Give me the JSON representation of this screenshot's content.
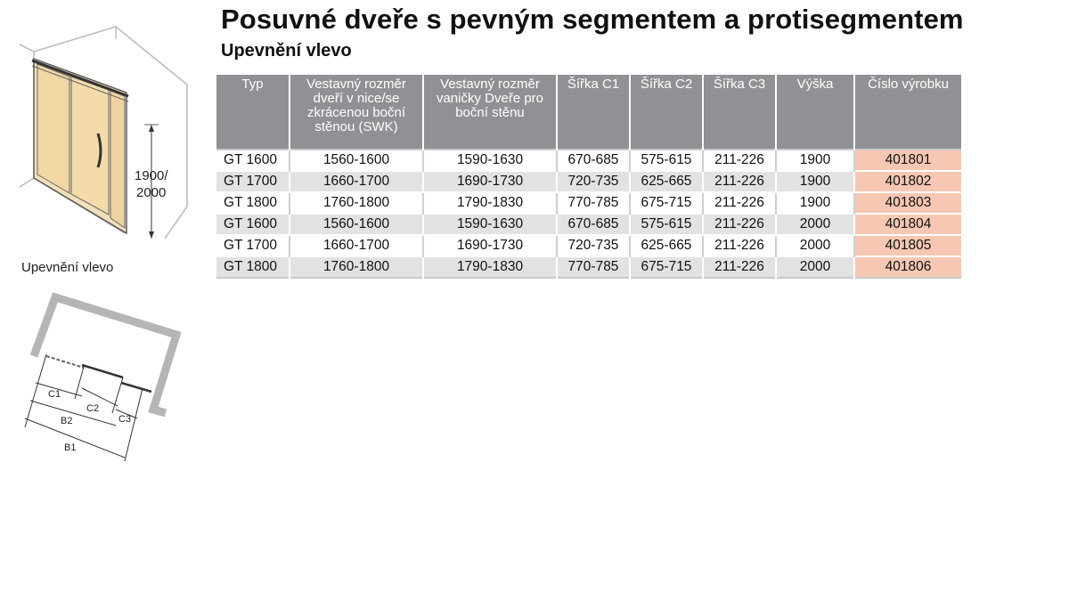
{
  "title": "Posuvné dveře s pevným segmentem a protisegmentem",
  "subtitle": "Upevnění vlevo",
  "figure": {
    "height_label_line1": "1900/",
    "height_label_line2": "2000",
    "caption": "Upevnění vlevo",
    "dim_c1": "C1",
    "dim_c2": "C2",
    "dim_c3": "C3",
    "dim_b1": "B1",
    "dim_b2": "B2"
  },
  "table": {
    "headers": [
      "Typ",
      "Vestavný rozměr dveří v nice/se zkrácenou boční stěnou (SWK)",
      "Vestavný rozměr vaničky Dveře pro boční stěnu",
      "Šířka C1",
      "Šířka C2",
      "Šířka C3",
      "Výška",
      "Číslo výrobku"
    ],
    "rows": [
      [
        "GT 1600",
        "1560-1600",
        "1590-1630",
        "670-685",
        "575-615",
        "211-226",
        "1900",
        "401801"
      ],
      [
        "GT 1700",
        "1660-1700",
        "1690-1730",
        "720-735",
        "625-665",
        "211-226",
        "1900",
        "401802"
      ],
      [
        "GT 1800",
        "1760-1800",
        "1790-1830",
        "770-785",
        "675-715",
        "211-226",
        "1900",
        "401803"
      ],
      [
        "GT 1600",
        "1560-1600",
        "1590-1630",
        "670-685",
        "575-615",
        "211-226",
        "2000",
        "401804"
      ],
      [
        "GT 1700",
        "1660-1700",
        "1690-1730",
        "720-735",
        "625-665",
        "211-226",
        "2000",
        "401805"
      ],
      [
        "GT 1800",
        "1760-1800",
        "1790-1830",
        "770-785",
        "675-715",
        "211-226",
        "2000",
        "401806"
      ]
    ]
  }
}
